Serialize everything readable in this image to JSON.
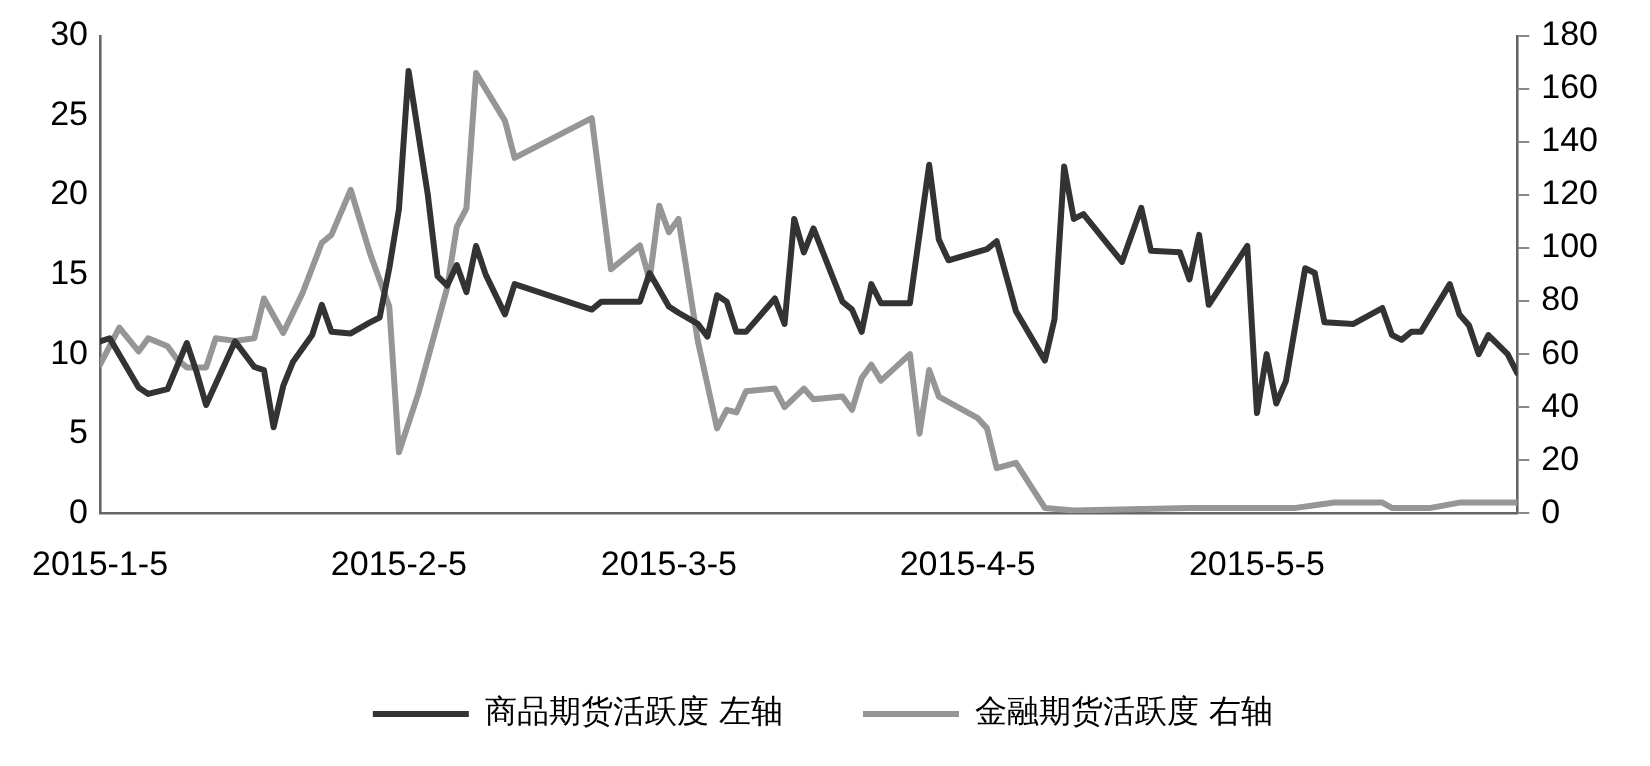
{
  "chart_data": {
    "type": "line",
    "xlim": [
      "2015-01-05",
      "2015-06-01"
    ],
    "xticks": [
      {
        "value": "2015-01-05",
        "label": "2015-1-5"
      },
      {
        "value": "2015-02-05",
        "label": "2015-2-5"
      },
      {
        "value": "2015-03-05",
        "label": "2015-3-5"
      },
      {
        "value": "2015-04-05",
        "label": "2015-4-5"
      },
      {
        "value": "2015-05-05",
        "label": "2015-5-5"
      }
    ],
    "ylim": [
      0,
      30
    ],
    "yticks": [
      0,
      5,
      10,
      15,
      20,
      25,
      30
    ],
    "y2lim": [
      0,
      180
    ],
    "y2ticks": [
      0,
      20,
      40,
      60,
      80,
      100,
      120,
      140,
      160,
      180
    ],
    "grid": false,
    "legend": "bottom",
    "marker": "none",
    "line_style": "solid",
    "series": [
      {
        "name": "商品期货活跃度 左轴",
        "color": "#333333",
        "x": [
          "2015-01-05",
          "2015-01-06",
          "2015-01-09",
          "2015-01-10",
          "2015-01-12",
          "2015-01-14",
          "2015-01-15",
          "2015-01-16",
          "2015-01-19",
          "2015-01-21",
          "2015-01-22",
          "2015-01-23",
          "2015-01-24",
          "2015-01-25",
          "2015-01-27",
          "2015-01-28",
          "2015-01-29",
          "2015-01-31",
          "2015-02-02",
          "2015-02-03",
          "2015-02-04",
          "2015-02-05",
          "2015-02-06",
          "2015-02-08",
          "2015-02-09",
          "2015-02-10",
          "2015-02-11",
          "2015-02-12",
          "2015-02-13",
          "2015-02-14",
          "2015-02-16",
          "2015-02-17",
          "2015-02-25",
          "2015-02-26",
          "2015-03-02",
          "2015-03-03",
          "2015-03-05",
          "2015-03-06",
          "2015-03-08",
          "2015-03-09",
          "2015-03-10",
          "2015-03-11",
          "2015-03-12",
          "2015-03-13",
          "2015-03-16",
          "2015-03-17",
          "2015-03-18",
          "2015-03-19",
          "2015-03-20",
          "2015-03-23",
          "2015-03-24",
          "2015-03-25",
          "2015-03-26",
          "2015-03-27",
          "2015-03-30",
          "2015-04-01",
          "2015-04-02",
          "2015-04-03",
          "2015-04-07",
          "2015-04-08",
          "2015-04-10",
          "2015-04-13",
          "2015-04-14",
          "2015-04-15",
          "2015-04-16",
          "2015-04-17",
          "2015-04-21",
          "2015-04-23",
          "2015-04-24",
          "2015-04-27",
          "2015-04-28",
          "2015-04-29",
          "2015-04-30",
          "2015-05-04",
          "2015-05-05",
          "2015-05-06",
          "2015-05-07",
          "2015-05-08",
          "2015-05-10",
          "2015-05-11",
          "2015-05-12",
          "2015-05-15",
          "2015-05-18",
          "2015-05-19",
          "2015-05-20",
          "2015-05-21",
          "2015-05-22",
          "2015-05-25",
          "2015-05-26",
          "2015-05-27",
          "2015-05-28",
          "2015-05-29",
          "2015-05-31",
          "2015-06-01"
        ],
        "values": [
          10.8,
          11.0,
          7.9,
          7.5,
          7.8,
          10.7,
          8.9,
          6.8,
          10.8,
          9.2,
          9.0,
          5.4,
          8.0,
          9.5,
          11.2,
          13.1,
          11.4,
          11.3,
          12.0,
          12.3,
          15.4,
          19.1,
          27.8,
          20.0,
          14.9,
          14.3,
          15.6,
          13.9,
          16.8,
          15.0,
          12.5,
          14.4,
          12.8,
          13.3,
          13.3,
          15.1,
          13.0,
          12.6,
          11.9,
          11.1,
          13.7,
          13.3,
          11.4,
          11.4,
          13.5,
          11.9,
          18.5,
          16.4,
          17.9,
          13.3,
          12.8,
          11.4,
          14.4,
          13.2,
          13.2,
          21.9,
          17.2,
          15.9,
          16.6,
          17.1,
          12.7,
          9.6,
          12.2,
          21.8,
          18.5,
          18.8,
          15.8,
          19.2,
          16.5,
          16.4,
          14.7,
          17.5,
          13.1,
          16.8,
          6.3,
          10.0,
          6.9,
          8.3,
          15.4,
          15.1,
          12.0,
          11.9,
          12.9,
          11.2,
          10.9,
          11.4,
          11.4,
          14.4,
          12.5,
          11.8,
          10.0,
          11.2,
          10.0,
          8.8
        ]
      },
      {
        "name": "金融期货活跃度 右轴",
        "color": "#969696",
        "axis": "y2",
        "x": [
          "2015-01-05",
          "2015-01-07",
          "2015-01-09",
          "2015-01-10",
          "2015-01-12",
          "2015-01-13",
          "2015-01-14",
          "2015-01-16",
          "2015-01-17",
          "2015-01-19",
          "2015-01-21",
          "2015-01-22",
          "2015-01-24",
          "2015-01-26",
          "2015-01-28",
          "2015-01-29",
          "2015-01-31",
          "2015-02-02",
          "2015-02-04",
          "2015-02-05",
          "2015-02-07",
          "2015-02-10",
          "2015-02-11",
          "2015-02-12",
          "2015-02-13",
          "2015-02-16",
          "2015-02-17",
          "2015-02-25",
          "2015-02-27",
          "2015-03-02",
          "2015-03-03",
          "2015-03-04",
          "2015-03-05",
          "2015-03-06",
          "2015-03-08",
          "2015-03-10",
          "2015-03-11",
          "2015-03-12",
          "2015-03-13",
          "2015-03-16",
          "2015-03-17",
          "2015-03-19",
          "2015-03-20",
          "2015-03-23",
          "2015-03-24",
          "2015-03-25",
          "2015-03-26",
          "2015-03-27",
          "2015-03-30",
          "2015-03-31",
          "2015-04-01",
          "2015-04-02",
          "2015-04-06",
          "2015-04-07",
          "2015-04-08",
          "2015-04-10",
          "2015-04-13",
          "2015-04-16",
          "2015-04-28",
          "2015-05-09",
          "2015-05-13",
          "2015-05-18",
          "2015-05-19",
          "2015-05-23",
          "2015-05-26",
          "2015-06-01"
        ],
        "values": [
          56,
          70,
          61,
          66,
          63,
          58,
          55,
          55,
          66,
          65,
          66,
          81,
          68,
          83,
          102,
          105,
          122,
          98,
          78,
          23,
          45,
          85,
          108,
          115,
          166,
          148,
          134,
          149,
          92,
          101,
          88,
          116,
          106,
          111,
          65,
          32,
          39,
          38,
          46,
          47,
          40,
          47,
          43,
          44,
          39,
          51,
          56,
          50,
          60,
          30,
          54,
          44,
          36,
          32,
          17,
          19,
          2,
          1,
          2,
          2,
          4,
          4,
          2,
          2,
          4,
          4
        ]
      }
    ]
  }
}
